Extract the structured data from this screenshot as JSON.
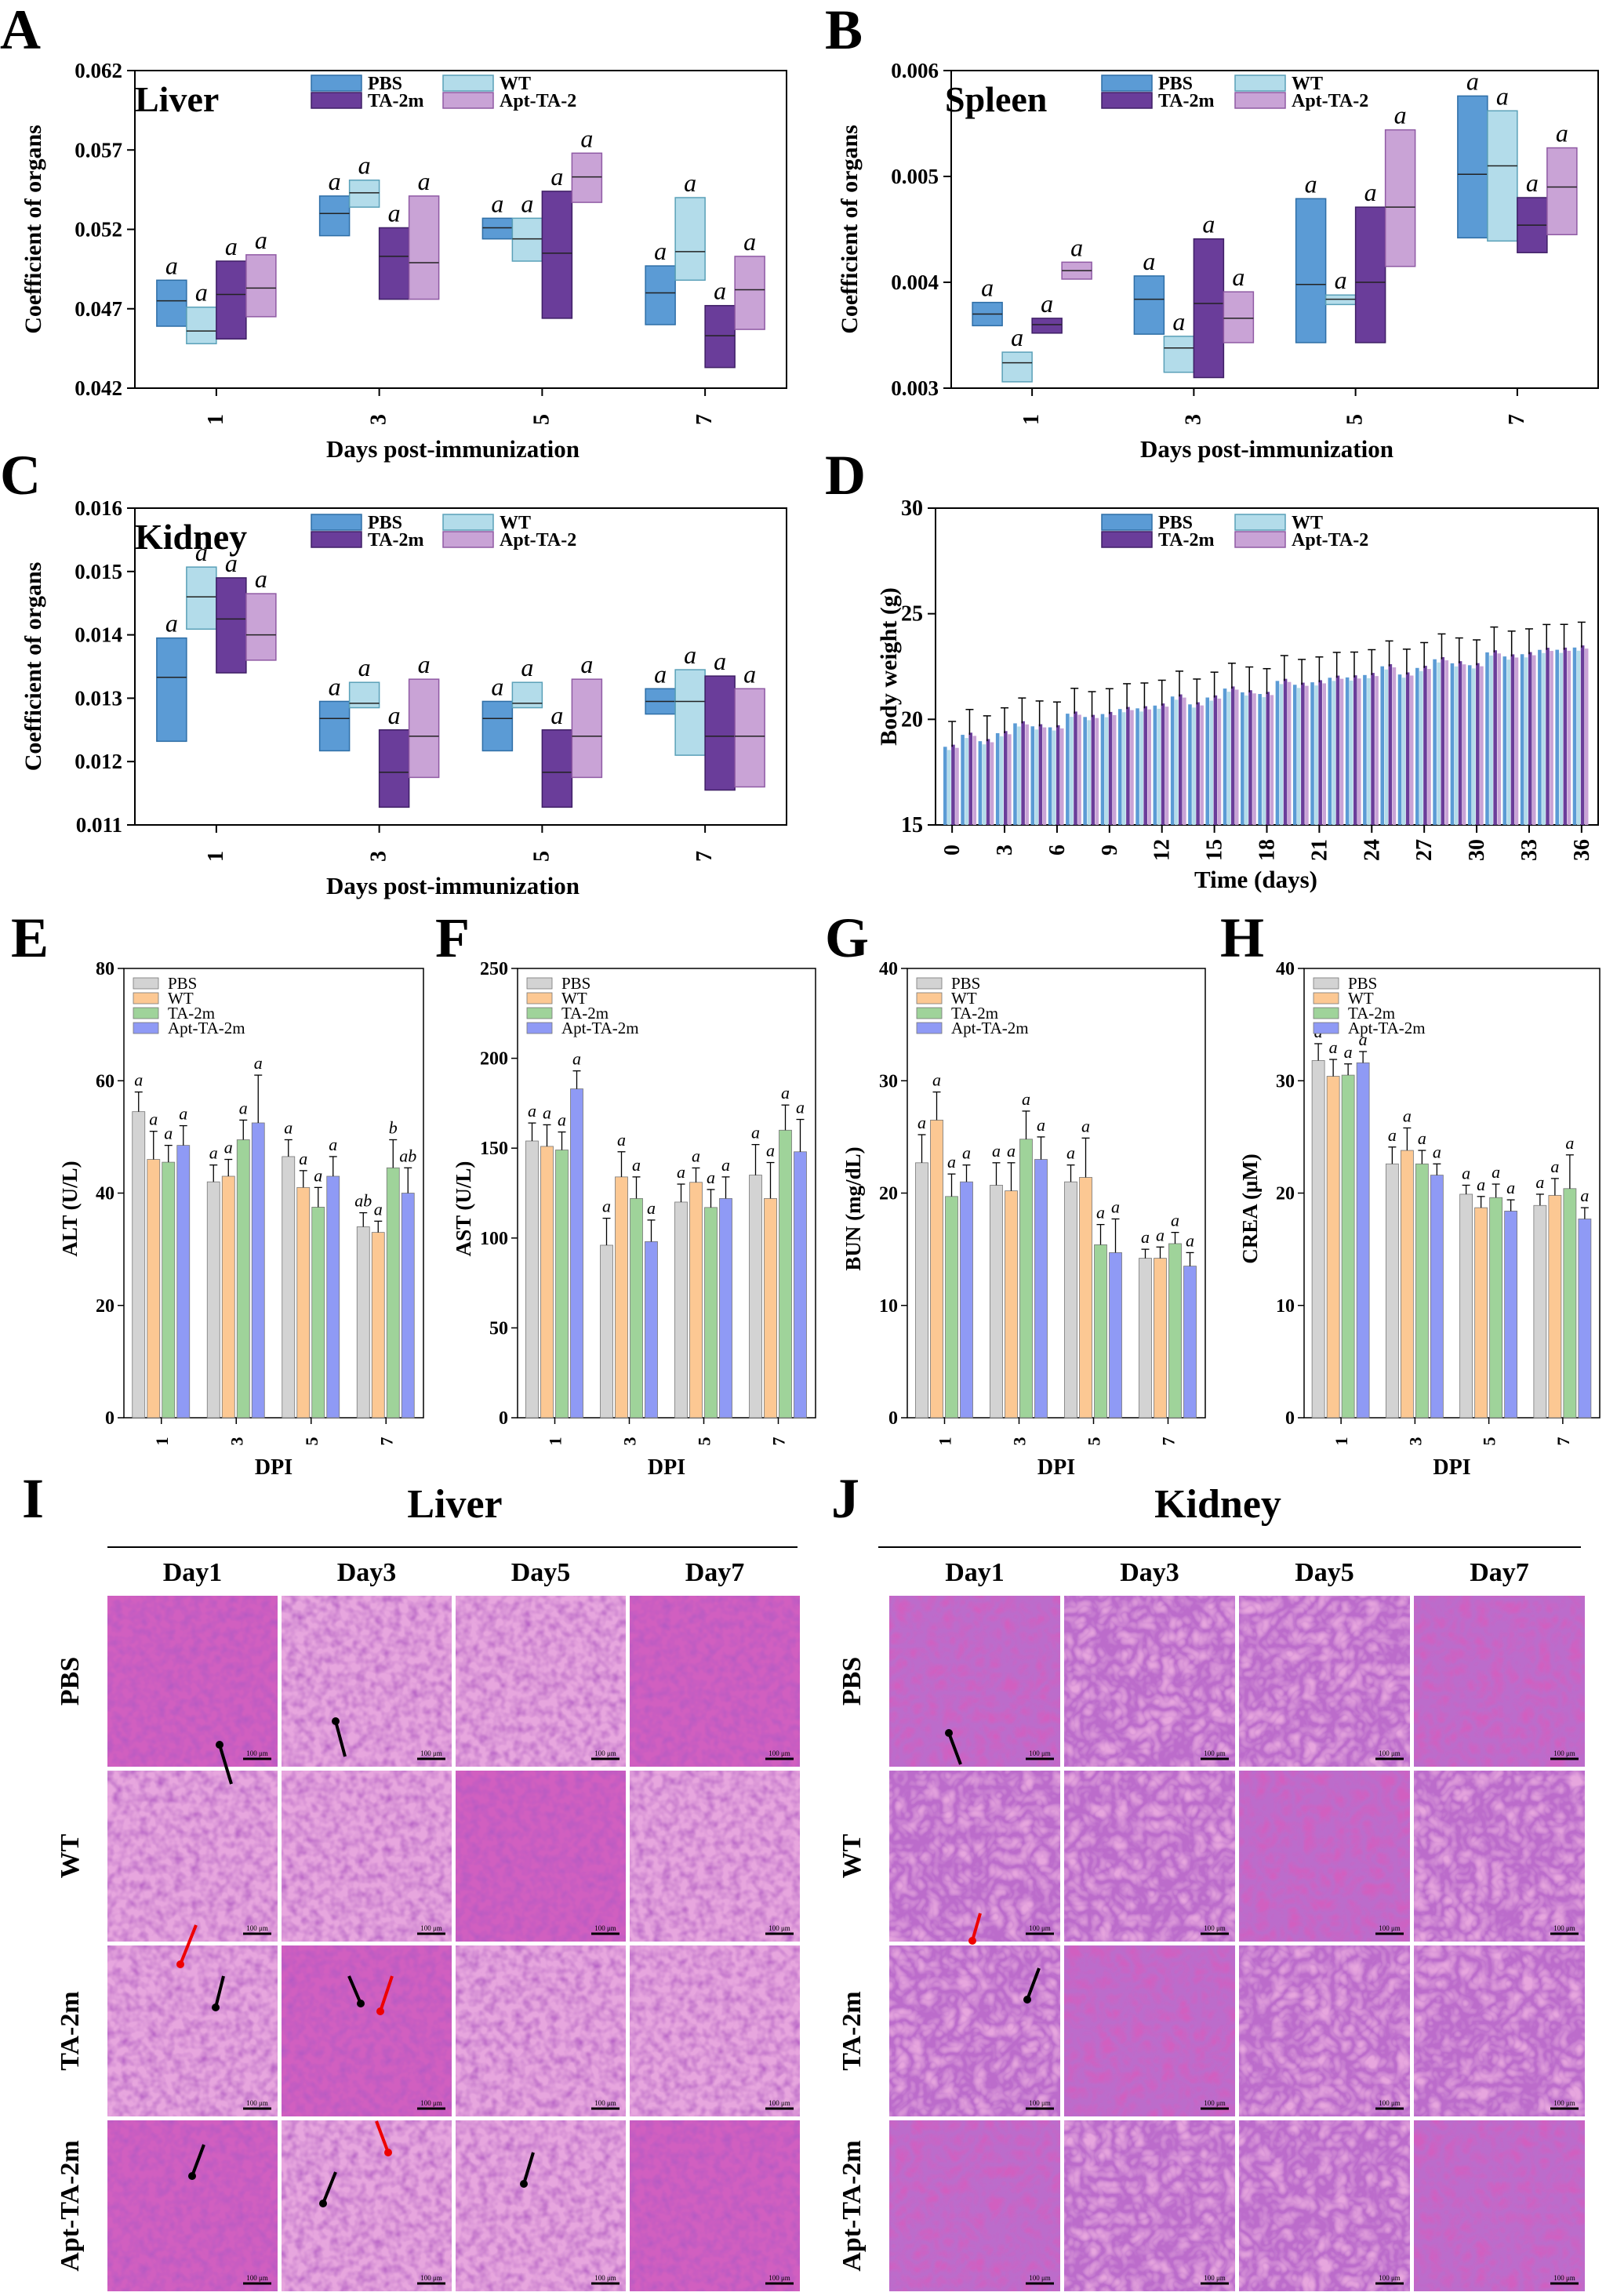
{
  "colors": {
    "pbs_box": "#5b9bd5",
    "pbs_dark": "#2e6ea6",
    "wt_box": "#b3dcea",
    "wt_dark": "#5aa0b8",
    "ta_box": "#6a3d9a",
    "ta_dark": "#3f1f66",
    "apt_box": "#c9a3d6",
    "apt_dark": "#8f5aa4",
    "bar_pbs": "#d3d3d3",
    "bar_wt": "#fcc893",
    "bar_ta": "#9fd39a",
    "bar_apt": "#8f9af5",
    "tissue": "#d15fc0",
    "tissue_light": "#e7a6de"
  },
  "panel_letters": {
    "A": "A",
    "B": "B",
    "C": "C",
    "D": "D",
    "E": "E",
    "F": "F",
    "G": "G",
    "H": "H",
    "I": "I",
    "J": "J"
  },
  "chart_data": [
    {
      "id": "A",
      "type": "box",
      "title": "Liver",
      "xlabel": "Days  post-immunization",
      "ylabel": "Coefficient of organs",
      "ylim": [
        0.042,
        0.062
      ],
      "yticks": [
        "0.042",
        "0.047",
        "0.052",
        "0.057",
        "0.062"
      ],
      "categories": [
        "1",
        "3",
        "5",
        "7"
      ],
      "legend": [
        "PBS",
        "WT",
        "TA-2m",
        "Apt-TA-2"
      ],
      "series": [
        {
          "name": "PBS",
          "boxes": [
            [
              0.0459,
              0.0488,
              0.0475
            ],
            [
              0.0516,
              0.0541,
              0.053
            ],
            [
              0.0514,
              0.0527,
              0.0521
            ],
            [
              0.046,
              0.0497,
              0.048
            ]
          ]
        },
        {
          "name": "WT",
          "boxes": [
            [
              0.0448,
              0.0471,
              0.0456
            ],
            [
              0.0534,
              0.0551,
              0.0543
            ],
            [
              0.05,
              0.0527,
              0.0514
            ],
            [
              0.0488,
              0.054,
              0.0506
            ]
          ]
        },
        {
          "name": "TA-2m",
          "boxes": [
            [
              0.0451,
              0.05,
              0.0479
            ],
            [
              0.0476,
              0.0521,
              0.0503
            ],
            [
              0.0464,
              0.0544,
              0.0505
            ],
            [
              0.0433,
              0.0472,
              0.0453
            ]
          ]
        },
        {
          "name": "Apt-TA-2",
          "boxes": [
            [
              0.0465,
              0.0504,
              0.0483
            ],
            [
              0.0476,
              0.0541,
              0.0499
            ],
            [
              0.0537,
              0.0568,
              0.0553
            ],
            [
              0.0457,
              0.0503,
              0.0482
            ]
          ]
        }
      ],
      "sig": "a"
    },
    {
      "id": "B",
      "type": "box",
      "title": "Spleen",
      "xlabel": "Days  post-immunization",
      "ylabel": "Coefficient of organs",
      "ylim": [
        0.003,
        0.006
      ],
      "yticks": [
        "0.003",
        "0.004",
        "0.005",
        "0.006"
      ],
      "categories": [
        "1",
        "3",
        "5",
        "7"
      ],
      "legend": [
        "PBS",
        "WT",
        "TA-2m",
        "Apt-TA-2"
      ],
      "series": [
        {
          "name": "PBS",
          "boxes": [
            [
              0.00359,
              0.00381,
              0.0037
            ],
            [
              0.00351,
              0.00406,
              0.00384
            ],
            [
              0.00343,
              0.00479,
              0.00398
            ],
            [
              0.00442,
              0.00576,
              0.00502
            ]
          ]
        },
        {
          "name": "WT",
          "boxes": [
            [
              0.00306,
              0.00334,
              0.00324
            ],
            [
              0.00315,
              0.00349,
              0.00338
            ],
            [
              0.00379,
              0.00388,
              0.00384
            ],
            [
              0.00439,
              0.00562,
              0.0051
            ]
          ]
        },
        {
          "name": "TA-2m",
          "boxes": [
            [
              0.00352,
              0.00366,
              0.0036
            ],
            [
              0.0031,
              0.00441,
              0.0038
            ],
            [
              0.00343,
              0.00471,
              0.004
            ],
            [
              0.00428,
              0.0048,
              0.00454
            ]
          ]
        },
        {
          "name": "Apt-TA-2",
          "boxes": [
            [
              0.00403,
              0.00419,
              0.00411
            ],
            [
              0.00343,
              0.00391,
              0.00366
            ],
            [
              0.00415,
              0.00544,
              0.00471
            ],
            [
              0.00445,
              0.00527,
              0.0049
            ]
          ]
        }
      ],
      "sig": "a"
    },
    {
      "id": "C",
      "type": "box",
      "title": "Kidney",
      "xlabel": "Days  post-immunization",
      "ylabel": "Coefficient of organs",
      "ylim": [
        0.011,
        0.016
      ],
      "yticks": [
        "0.011",
        "0.012",
        "0.013",
        "0.014",
        "0.015",
        "0.016"
      ],
      "categories": [
        "1",
        "3",
        "5",
        "7"
      ],
      "legend": [
        "PBS",
        "WT",
        "TA-2m",
        "Apt-TA-2"
      ],
      "series": [
        {
          "name": "PBS",
          "boxes": [
            [
              0.01232,
              0.01395,
              0.01333
            ],
            [
              0.01217,
              0.01295,
              0.01268
            ],
            [
              0.01217,
              0.01295,
              0.01268
            ],
            [
              0.01275,
              0.01315,
              0.01295
            ]
          ]
        },
        {
          "name": "WT",
          "boxes": [
            [
              0.01409,
              0.01507,
              0.0146
            ],
            [
              0.01285,
              0.01325,
              0.01292
            ],
            [
              0.01285,
              0.01325,
              0.01292
            ],
            [
              0.0121,
              0.01345,
              0.01295
            ]
          ]
        },
        {
          "name": "TA-2m",
          "boxes": [
            [
              0.0134,
              0.0149,
              0.01425
            ],
            [
              0.01128,
              0.0125,
              0.01183
            ],
            [
              0.01128,
              0.0125,
              0.01183
            ],
            [
              0.01155,
              0.01335,
              0.0124
            ]
          ]
        },
        {
          "name": "Apt-TA-2",
          "boxes": [
            [
              0.0136,
              0.01465,
              0.014
            ],
            [
              0.01175,
              0.0133,
              0.0124
            ],
            [
              0.01175,
              0.0133,
              0.0124
            ],
            [
              0.0116,
              0.01315,
              0.0124
            ]
          ]
        }
      ],
      "sig": "a"
    },
    {
      "id": "D",
      "type": "bar",
      "xlabel": "Time (days)",
      "ylabel": "Body weight (g)",
      "ylim": [
        15,
        30
      ],
      "yticks": [
        "15",
        "20",
        "25",
        "30"
      ],
      "xticks": [
        "0",
        "3",
        "6",
        "9",
        "12",
        "15",
        "18",
        "21",
        "24",
        "27",
        "30",
        "33",
        "36"
      ],
      "legend": [
        "PBS",
        "WT",
        "TA-2m",
        "Apt-TA-2"
      ],
      "days": 37,
      "start": 18.7,
      "end": 23.4,
      "err": 1.2
    },
    {
      "id": "E",
      "type": "bar",
      "xlabel": "DPI",
      "ylabel": "ALT (U/L)",
      "ylim": [
        0,
        80
      ],
      "yticks": [
        "0",
        "20",
        "40",
        "60",
        "80"
      ],
      "categories": [
        "1",
        "3",
        "5",
        "7"
      ],
      "legend": [
        "PBS",
        "WT",
        "TA-2m",
        "Apt-TA-2m"
      ],
      "series": [
        {
          "name": "PBS",
          "values": [
            54.5,
            42.0,
            46.5,
            34.0
          ],
          "errors": [
            3.5,
            3.0,
            3.0,
            2.5
          ]
        },
        {
          "name": "WT",
          "values": [
            46.0,
            43.0,
            41.0,
            33.0
          ],
          "errors": [
            5.0,
            3.0,
            3.0,
            2.0
          ]
        },
        {
          "name": "TA-2m",
          "values": [
            45.5,
            49.5,
            37.5,
            44.5
          ],
          "errors": [
            3.0,
            3.5,
            3.5,
            5.0
          ]
        },
        {
          "name": "Apt-TA-2m",
          "values": [
            48.5,
            52.5,
            43.0,
            40.0
          ],
          "errors": [
            3.5,
            8.5,
            3.5,
            4.5
          ]
        }
      ],
      "labels": [
        [
          "a",
          "a",
          "a",
          "a"
        ],
        [
          "a",
          "a",
          "a",
          "a"
        ],
        [
          "a",
          "a",
          "a",
          "a"
        ],
        [
          "ab",
          "a",
          "b",
          "ab"
        ]
      ]
    },
    {
      "id": "F",
      "type": "bar",
      "xlabel": "DPI",
      "ylabel": "AST (U/L)",
      "ylim": [
        0,
        250
      ],
      "yticks": [
        "0",
        "50",
        "100",
        "150",
        "200",
        "250"
      ],
      "categories": [
        "1",
        "3",
        "5",
        "7"
      ],
      "legend": [
        "PBS",
        "WT",
        "TA-2m",
        "Apt-TA-2m"
      ],
      "series": [
        {
          "name": "PBS",
          "values": [
            154,
            96,
            120,
            135
          ],
          "errors": [
            10,
            15,
            10,
            17
          ]
        },
        {
          "name": "WT",
          "values": [
            151,
            134,
            131,
            122
          ],
          "errors": [
            12,
            14,
            8,
            20
          ]
        },
        {
          "name": "TA-2m",
          "values": [
            149,
            122,
            117,
            160
          ],
          "errors": [
            10,
            12,
            10,
            14
          ]
        },
        {
          "name": "Apt-TA-2m",
          "values": [
            183,
            98,
            122,
            148
          ],
          "errors": [
            10,
            12,
            12,
            18
          ]
        }
      ],
      "labels": [
        [
          "a",
          "a",
          "a",
          "a"
        ],
        [
          "a",
          "a",
          "a",
          "a"
        ],
        [
          "a",
          "a",
          "a",
          "a"
        ],
        [
          "a",
          "a",
          "a",
          "a"
        ]
      ]
    },
    {
      "id": "G",
      "type": "bar",
      "xlabel": "DPI",
      "ylabel": "BUN (mg/dL)",
      "ylim": [
        0,
        40
      ],
      "yticks": [
        "0",
        "10",
        "20",
        "30",
        "40"
      ],
      "categories": [
        "1",
        "3",
        "5",
        "7"
      ],
      "legend": [
        "PBS",
        "WT",
        "TA-2m",
        "Apt-TA-2m"
      ],
      "series": [
        {
          "name": "PBS",
          "values": [
            22.7,
            20.7,
            21.0,
            14.2
          ],
          "errors": [
            2.5,
            2.0,
            1.5,
            0.8
          ]
        },
        {
          "name": "WT",
          "values": [
            26.5,
            20.2,
            21.4,
            14.2
          ],
          "errors": [
            2.5,
            2.5,
            3.5,
            1.0
          ]
        },
        {
          "name": "TA-2m",
          "values": [
            19.7,
            24.8,
            15.4,
            15.5
          ],
          "errors": [
            2.0,
            2.5,
            1.8,
            1.0
          ]
        },
        {
          "name": "Apt-TA-2m",
          "values": [
            21.0,
            23.0,
            14.7,
            13.5
          ],
          "errors": [
            1.5,
            2.0,
            3.0,
            1.2
          ]
        }
      ],
      "labels": [
        [
          "a",
          "a",
          "a",
          "a"
        ],
        [
          "a",
          "a",
          "a",
          "a"
        ],
        [
          "a",
          "a",
          "a",
          "a"
        ],
        [
          "a",
          "a",
          "a",
          "a"
        ]
      ]
    },
    {
      "id": "H",
      "type": "bar",
      "xlabel": "DPI",
      "ylabel": "CREA (μM)",
      "ylim": [
        0,
        40
      ],
      "yticks": [
        "0",
        "10",
        "20",
        "30",
        "40"
      ],
      "categories": [
        "1",
        "3",
        "5",
        "7"
      ],
      "legend": [
        "PBS",
        "WT",
        "TA-2m",
        "Apt-TA-2m"
      ],
      "series": [
        {
          "name": "PBS",
          "values": [
            31.8,
            22.6,
            19.9,
            18.9
          ],
          "errors": [
            1.5,
            1.5,
            0.8,
            1.0
          ]
        },
        {
          "name": "WT",
          "values": [
            30.4,
            23.8,
            18.7,
            19.8
          ],
          "errors": [
            1.5,
            2.0,
            1.0,
            1.5
          ]
        },
        {
          "name": "TA-2m",
          "values": [
            30.5,
            22.6,
            19.6,
            20.4
          ],
          "errors": [
            1.0,
            1.2,
            1.2,
            3.0
          ]
        },
        {
          "name": "Apt-TA-2m",
          "values": [
            31.6,
            21.6,
            18.4,
            17.7
          ],
          "errors": [
            1.0,
            1.0,
            1.0,
            1.0
          ]
        }
      ],
      "labels": [
        [
          "a",
          "a",
          "a",
          "a"
        ],
        [
          "a",
          "a",
          "a",
          "a"
        ],
        [
          "a",
          "a",
          "a",
          "a"
        ],
        [
          "a",
          "a",
          "a",
          "a"
        ]
      ]
    }
  ],
  "histology": {
    "I": {
      "title": "Liver",
      "columns": [
        "Day1",
        "Day3",
        "Day5",
        "Day7"
      ],
      "rows": [
        "PBS",
        "WT",
        "TA-2m",
        "Apt-TA-2m"
      ],
      "scale_bar": "100 μm"
    },
    "J": {
      "title": "Kidney",
      "columns": [
        "Day1",
        "Day3",
        "Day5",
        "Day7"
      ],
      "rows": [
        "PBS",
        "WT",
        "TA-2m",
        "Apt-TA-2m"
      ],
      "scale_bar": "100 μm"
    }
  }
}
